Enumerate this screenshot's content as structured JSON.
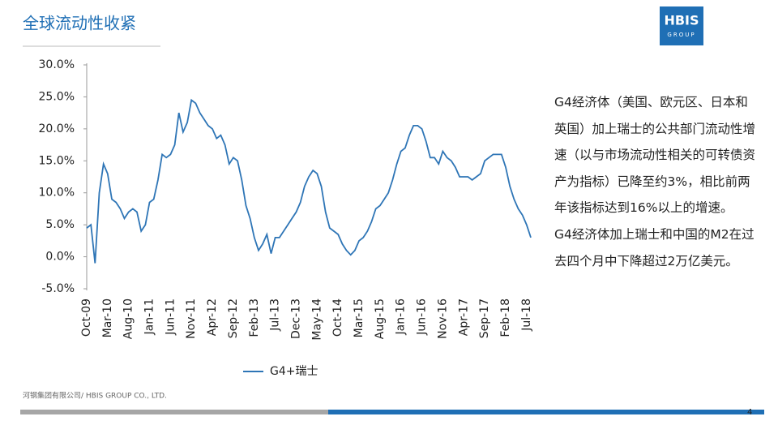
{
  "header": {
    "title": "全球流动性收紧",
    "logo": "HBIS",
    "logo_sub": "GROUP"
  },
  "chart_data": {
    "type": "line",
    "categories": [
      "Oct-09",
      null,
      null,
      null,
      null,
      "Mar-10",
      null,
      null,
      null,
      null,
      "Aug-10",
      null,
      null,
      null,
      null,
      "Jan-11",
      null,
      null,
      null,
      null,
      "Jun-11",
      null,
      null,
      null,
      null,
      "Nov-11",
      null,
      null,
      null,
      null,
      "Apr-12",
      null,
      null,
      null,
      null,
      "Sep-12",
      null,
      null,
      null,
      null,
      "Feb-13",
      null,
      null,
      null,
      null,
      "Jul-13",
      null,
      null,
      null,
      null,
      "Dec-13",
      null,
      null,
      null,
      null,
      "May-14",
      null,
      null,
      null,
      null,
      "Oct-14",
      null,
      null,
      null,
      null,
      "Mar-15",
      null,
      null,
      null,
      null,
      "Aug-15",
      null,
      null,
      null,
      null,
      "Jan-16",
      null,
      null,
      null,
      null,
      "Jun-16",
      null,
      null,
      null,
      null,
      "Nov-16",
      null,
      null,
      null,
      null,
      "Apr-17",
      null,
      null,
      null,
      null,
      "Sep-17",
      null,
      null,
      null,
      null,
      "Feb-18",
      null,
      null,
      null,
      null,
      "Jul-18",
      null
    ],
    "series": [
      {
        "name": "G4+瑞士",
        "color": "#2e75b6",
        "values": [
          4.5,
          5,
          -1,
          10,
          14.5,
          13,
          9,
          8.5,
          7.5,
          6,
          7,
          7.5,
          7,
          4,
          5,
          8.5,
          9,
          12,
          16,
          15.5,
          16,
          17.5,
          22.5,
          19.5,
          21,
          24.5,
          24,
          22.5,
          21.5,
          20.5,
          20,
          18.5,
          19,
          17.5,
          14.5,
          15.5,
          15,
          12,
          8,
          6,
          3,
          1,
          2,
          3.5,
          0.5,
          3,
          3,
          4,
          5,
          6,
          7,
          8.5,
          11,
          12.5,
          13.5,
          13,
          11,
          7,
          4.5,
          4,
          3.5,
          2,
          1,
          0.3,
          1,
          2.5,
          3,
          4,
          5.5,
          7.5,
          8,
          9,
          10,
          12,
          14.5,
          16.5,
          17,
          19,
          20.5,
          20.5,
          20,
          18,
          15.5,
          15.5,
          14.5,
          16.5,
          15.5,
          15,
          14,
          12.5,
          12.5,
          12.5,
          12,
          12.5,
          13,
          15,
          15.5,
          16,
          16,
          16,
          14,
          11,
          9,
          7.5,
          6.5,
          5,
          3
        ]
      }
    ],
    "ylim": [
      -5,
      30
    ],
    "yticks": [
      {
        "value": -5,
        "label": "-5.0%"
      },
      {
        "value": 0,
        "label": "0.0%"
      },
      {
        "value": 5,
        "label": "5.0%"
      },
      {
        "value": 10,
        "label": "10.0%"
      },
      {
        "value": 15,
        "label": "15.0%"
      },
      {
        "value": 20,
        "label": "20.0%"
      },
      {
        "value": 25,
        "label": "25.0%"
      },
      {
        "value": 30,
        "label": "30.0%"
      }
    ],
    "grid": false
  },
  "body": {
    "paragraphs": [
      "G4经济体（美国、欧元区、日本和英国）加上瑞士的公共部门流动性增速（以与市场流动性相关的可转债资产为指标）已降至约3%，相比前两年该指标达到16%以上的增速。",
      "G4经济体加上瑞士和中国的M2在过去四个月中下降超过2万亿美元。"
    ]
  },
  "footer": {
    "company": "河钢集团有限公司/ HBIS GROUP CO., LTD.",
    "page": "4"
  }
}
